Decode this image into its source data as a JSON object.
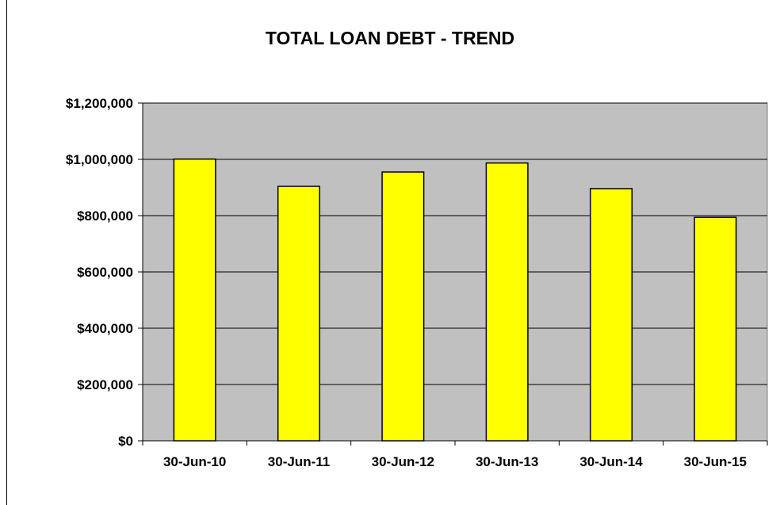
{
  "chart_data": {
    "type": "bar",
    "title": "TOTAL LOAN DEBT - TREND",
    "xlabel": "",
    "ylabel": "",
    "categories": [
      "30-Jun-10",
      "30-Jun-11",
      "30-Jun-12",
      "30-Jun-13",
      "30-Jun-14",
      "30-Jun-15"
    ],
    "values": [
      1001000,
      904000,
      955000,
      987000,
      896000,
      794000
    ],
    "ylim": [
      0,
      1200000
    ],
    "yticks": [
      0,
      200000,
      400000,
      600000,
      800000,
      1000000,
      1200000
    ],
    "ytick_labels": [
      "$0",
      "$200,000",
      "$400,000",
      "$600,000",
      "$800,000",
      "$1,000,000",
      "$1,200,000"
    ],
    "grid": true,
    "legend": "none",
    "colors": {
      "bar_fill": "#ffff00",
      "bar_stroke": "#000000",
      "plot_background": "#c0c0c0",
      "gridline": "#000000"
    }
  }
}
